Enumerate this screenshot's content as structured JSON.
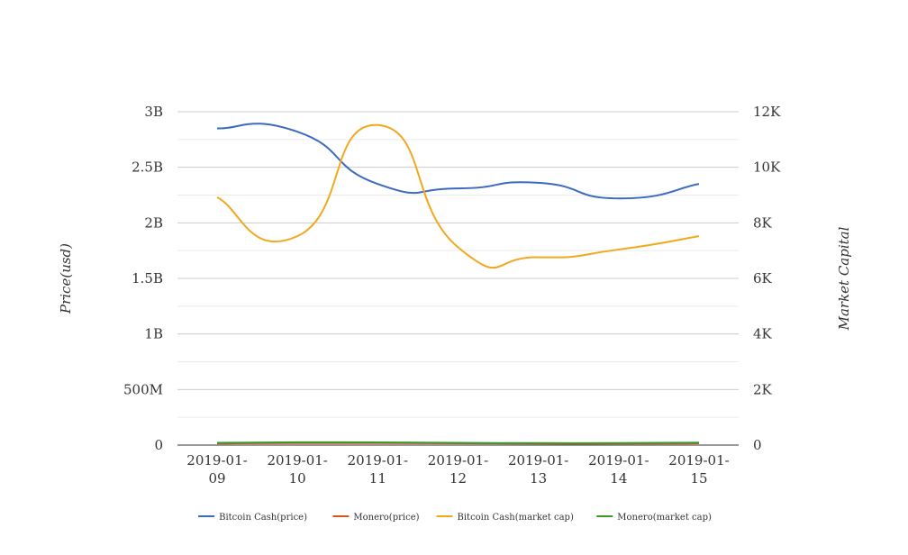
{
  "chart_data": {
    "type": "line",
    "categories": [
      "2019-01-09",
      "2019-01-10",
      "2019-01-11",
      "2019-01-12",
      "2019-01-13",
      "2019-01-14",
      "2019-01-15"
    ],
    "category_lines": [
      [
        "2019-01-",
        "09"
      ],
      [
        "2019-01-",
        "10"
      ],
      [
        "2019-01-",
        "11"
      ],
      [
        "2019-01-",
        "12"
      ],
      [
        "2019-01-",
        "13"
      ],
      [
        "2019-01-",
        "14"
      ],
      [
        "2019-01-",
        "15"
      ]
    ],
    "y_left": {
      "title": "Price(usd)",
      "ylim": [
        0,
        3000000000
      ],
      "ticks": [
        "0",
        "500M",
        "1B",
        "1.5B",
        "2B",
        "2.5B",
        "3B"
      ]
    },
    "y_right": {
      "title": "Market Capital",
      "ylim": [
        0,
        12000
      ],
      "ticks": [
        "0",
        "2K",
        "4K",
        "6K",
        "8K",
        "10K",
        "12K"
      ]
    },
    "grid": true,
    "legend_position": "bottom",
    "series": [
      {
        "name": "Bitcoin Cash(price)",
        "axis": "left",
        "color": "#3b6abf",
        "values": [
          2850000000,
          2820000000,
          2350000000,
          2310000000,
          2360000000,
          2220000000,
          2350000000
        ]
      },
      {
        "name": "Monero(price)",
        "axis": "left",
        "color": "#d9541e",
        "values": [
          15000000,
          18000000,
          18000000,
          16000000,
          14000000,
          14000000,
          16000000
        ]
      },
      {
        "name": "Bitcoin Cash(market cap)",
        "axis": "left",
        "color": "#f2a81d",
        "values": [
          2230000000,
          1880000000,
          2880000000,
          1780000000,
          1690000000,
          1760000000,
          1880000000
        ]
      },
      {
        "name": "Monero(market cap)",
        "axis": "left",
        "color": "#3a9a2a",
        "values": [
          20000000,
          25000000,
          24000000,
          20000000,
          18000000,
          18000000,
          22000000
        ]
      }
    ]
  }
}
